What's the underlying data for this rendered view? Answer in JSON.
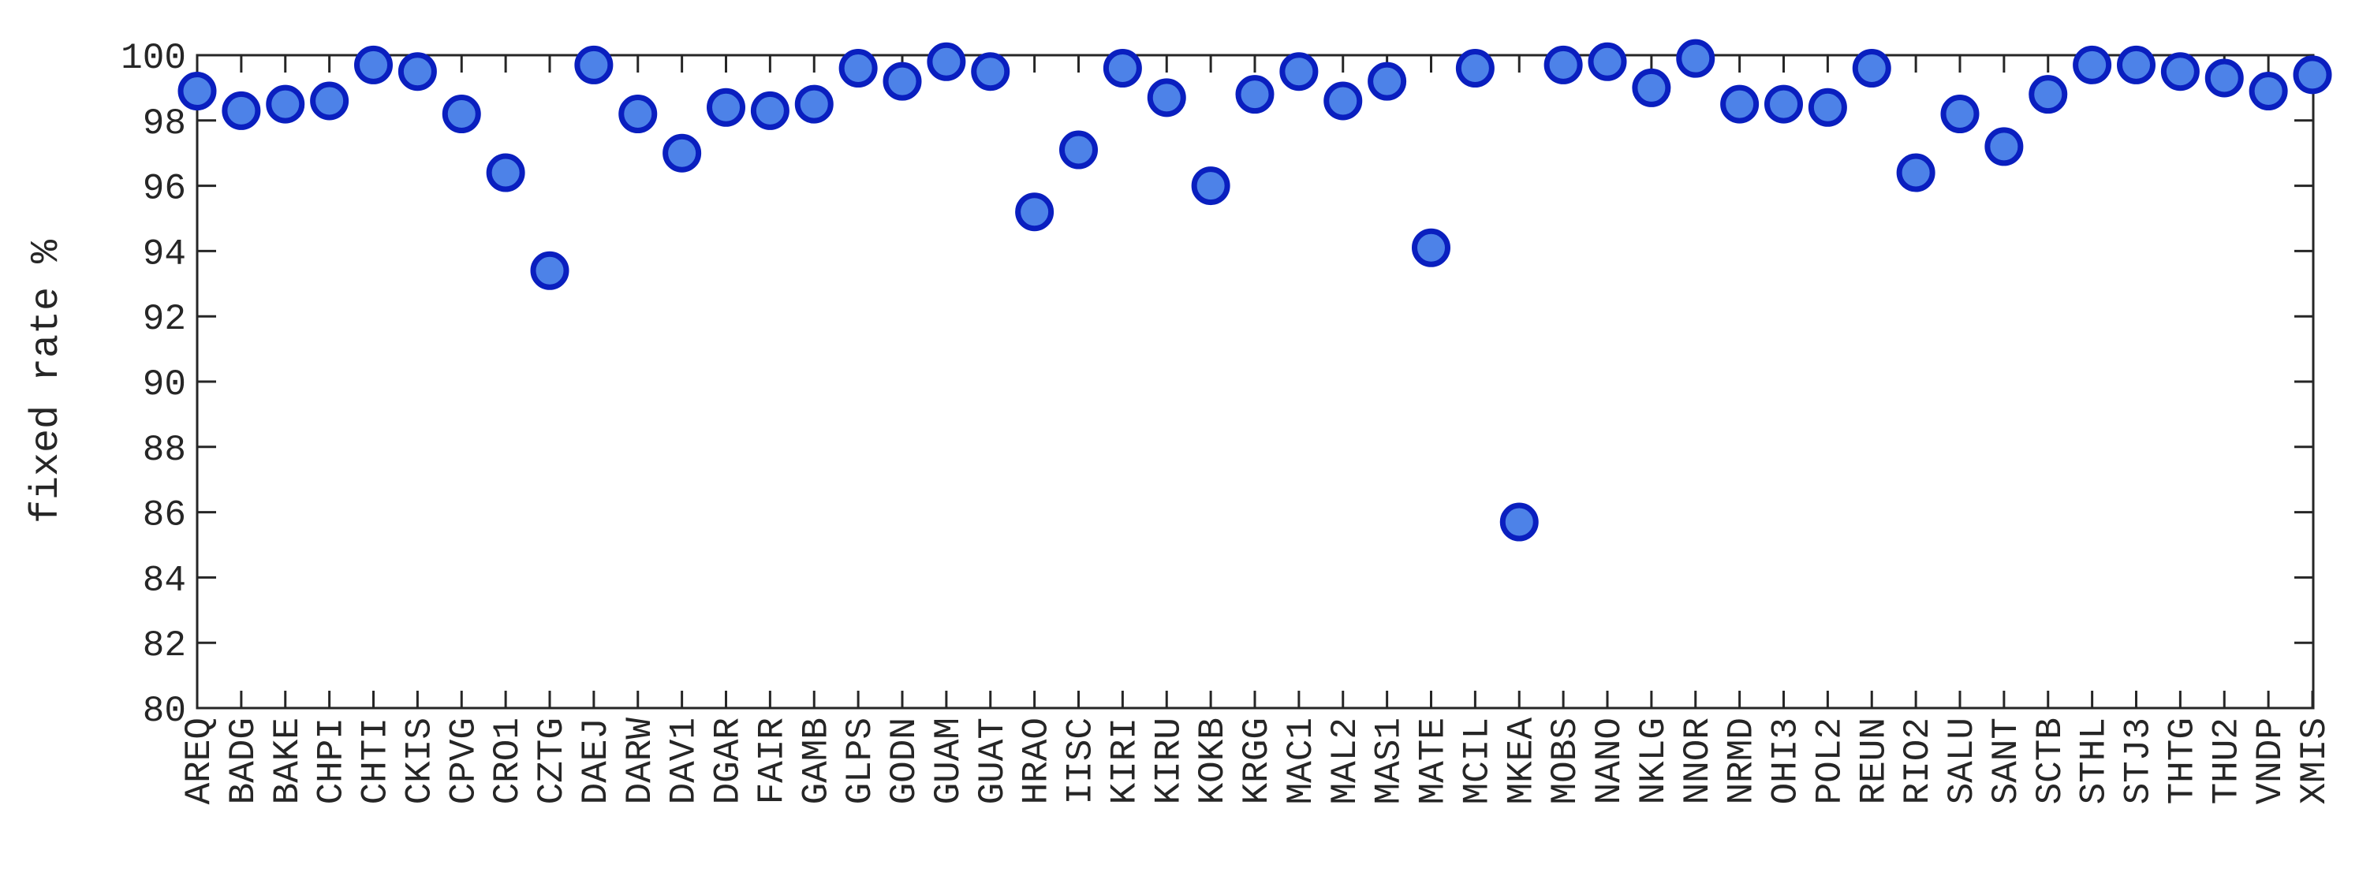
{
  "chart_data": {
    "type": "scatter",
    "title": "",
    "xlabel": "",
    "ylabel": "fixed rate %",
    "ylim": [
      80,
      100
    ],
    "yticks": [
      80,
      82,
      84,
      86,
      88,
      90,
      92,
      94,
      96,
      98,
      100
    ],
    "grid": false,
    "marker": {
      "shape": "circle",
      "fill": "#4d82e8",
      "edge": "#0a1fbf"
    },
    "categories": [
      "AREQ",
      "BADG",
      "BAKE",
      "CHPI",
      "CHTI",
      "CKIS",
      "CPVG",
      "CRO1",
      "CZTG",
      "DAEJ",
      "DARW",
      "DAV1",
      "DGAR",
      "FAIR",
      "GAMB",
      "GLPS",
      "GODN",
      "GUAM",
      "GUAT",
      "HRAO",
      "IISC",
      "KIRI",
      "KIRU",
      "KOKB",
      "KRGG",
      "MAC1",
      "MAL2",
      "MAS1",
      "MATE",
      "MCIL",
      "MKEA",
      "MOBS",
      "NANO",
      "NKLG",
      "NNOR",
      "NRMD",
      "OHI3",
      "POL2",
      "REUN",
      "RIO2",
      "SALU",
      "SANT",
      "SCTB",
      "STHL",
      "STJ3",
      "THTG",
      "THU2",
      "VNDP",
      "XMIS"
    ],
    "values": [
      98.9,
      98.3,
      98.5,
      98.6,
      99.7,
      99.5,
      98.2,
      96.4,
      93.4,
      99.7,
      98.2,
      97.0,
      98.4,
      98.3,
      98.5,
      99.6,
      99.2,
      99.8,
      99.5,
      95.2,
      97.1,
      99.6,
      98.7,
      96.0,
      98.8,
      99.5,
      98.6,
      99.2,
      94.1,
      99.6,
      85.7,
      99.7,
      99.8,
      99.0,
      99.9,
      98.5,
      98.5,
      98.4,
      99.6,
      96.4,
      98.2,
      97.2,
      98.8,
      99.7,
      99.7,
      99.5,
      99.3,
      98.9,
      99.4
    ]
  }
}
